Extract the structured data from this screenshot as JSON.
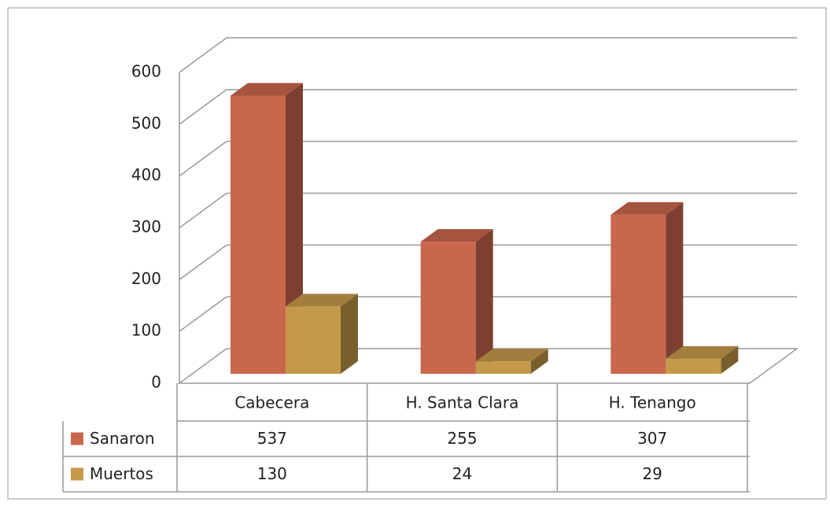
{
  "chart_data": {
    "type": "bar3d",
    "categories": [
      "Cabecera",
      "H. Santa Clara",
      "H. Tenango"
    ],
    "series": [
      {
        "name": "Sanaron",
        "color": "#c9674d",
        "values": [
          537,
          255,
          307
        ]
      },
      {
        "name": "Muertos",
        "color": "#c49a4a",
        "values": [
          130,
          24,
          29
        ]
      }
    ],
    "ylim": [
      0,
      600
    ],
    "yticks": [
      0,
      100,
      200,
      300,
      400,
      500,
      600
    ],
    "grid": true,
    "data_table": true
  }
}
